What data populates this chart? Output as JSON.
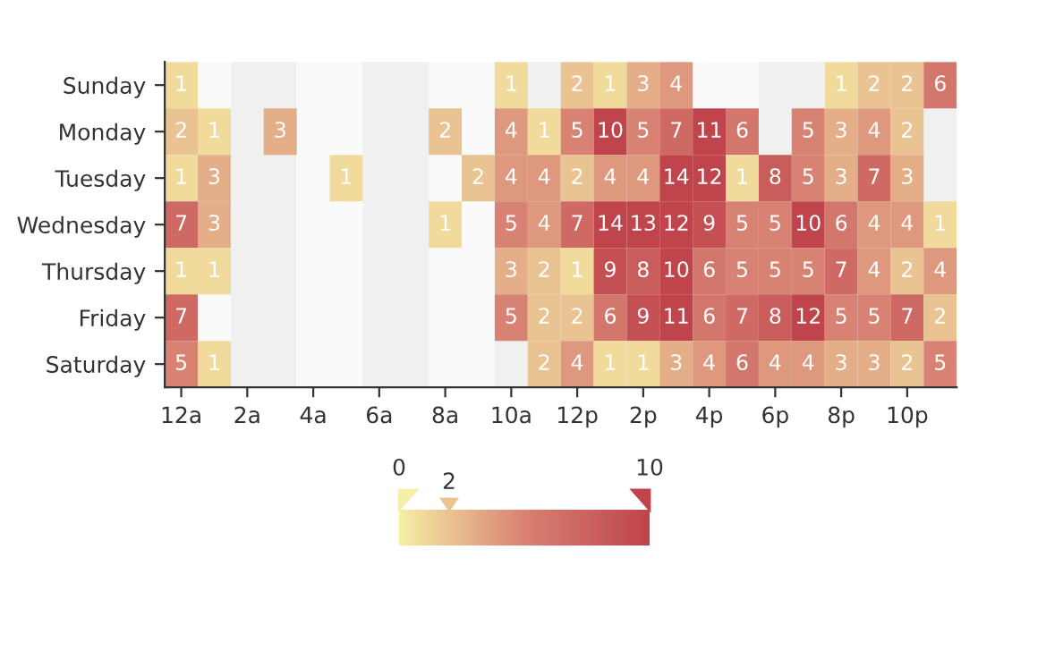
{
  "chart_data": {
    "type": "heatmap",
    "categories": [
      "12a",
      null,
      "2a",
      null,
      "4a",
      null,
      "6a",
      null,
      "8a",
      null,
      "10a",
      null,
      "12p",
      null,
      "2p",
      null,
      "4p",
      null,
      "6p",
      null,
      "8p",
      null,
      "10p",
      null
    ],
    "y_categories": [
      "Sunday",
      "Monday",
      "Tuesday",
      "Wednesday",
      "Thursday",
      "Friday",
      "Saturday"
    ],
    "cells": [
      [
        1,
        null,
        null,
        null,
        null,
        null,
        null,
        null,
        null,
        null,
        1,
        null,
        2,
        1,
        3,
        4,
        null,
        null,
        null,
        null,
        1,
        2,
        2,
        6
      ],
      [
        2,
        1,
        null,
        3,
        null,
        null,
        null,
        null,
        2,
        null,
        4,
        1,
        5,
        10,
        5,
        7,
        11,
        6,
        null,
        5,
        3,
        4,
        2,
        null
      ],
      [
        1,
        3,
        null,
        null,
        null,
        1,
        null,
        null,
        null,
        2,
        4,
        4,
        2,
        4,
        4,
        14,
        12,
        1,
        8,
        5,
        3,
        7,
        3,
        null
      ],
      [
        7,
        3,
        null,
        null,
        null,
        null,
        null,
        null,
        1,
        null,
        5,
        4,
        7,
        14,
        13,
        12,
        9,
        5,
        5,
        10,
        6,
        4,
        4,
        1
      ],
      [
        1,
        1,
        null,
        null,
        null,
        null,
        null,
        null,
        null,
        null,
        3,
        2,
        1,
        9,
        8,
        10,
        6,
        5,
        5,
        5,
        7,
        4,
        2,
        4
      ],
      [
        7,
        null,
        null,
        null,
        null,
        null,
        null,
        null,
        null,
        null,
        5,
        2,
        2,
        6,
        9,
        11,
        6,
        7,
        8,
        12,
        5,
        5,
        7,
        2
      ],
      [
        5,
        1,
        null,
        null,
        null,
        null,
        null,
        null,
        null,
        null,
        null,
        2,
        4,
        1,
        1,
        3,
        4,
        6,
        4,
        4,
        3,
        3,
        2,
        5
      ]
    ],
    "colors": [
      "#f6efa6",
      "#d88273",
      "#bf444c"
    ],
    "clim": [
      0,
      10
    ],
    "cticks": [
      0,
      10
    ],
    "annotations": [
      "2"
    ],
    "data_labels": true
  }
}
